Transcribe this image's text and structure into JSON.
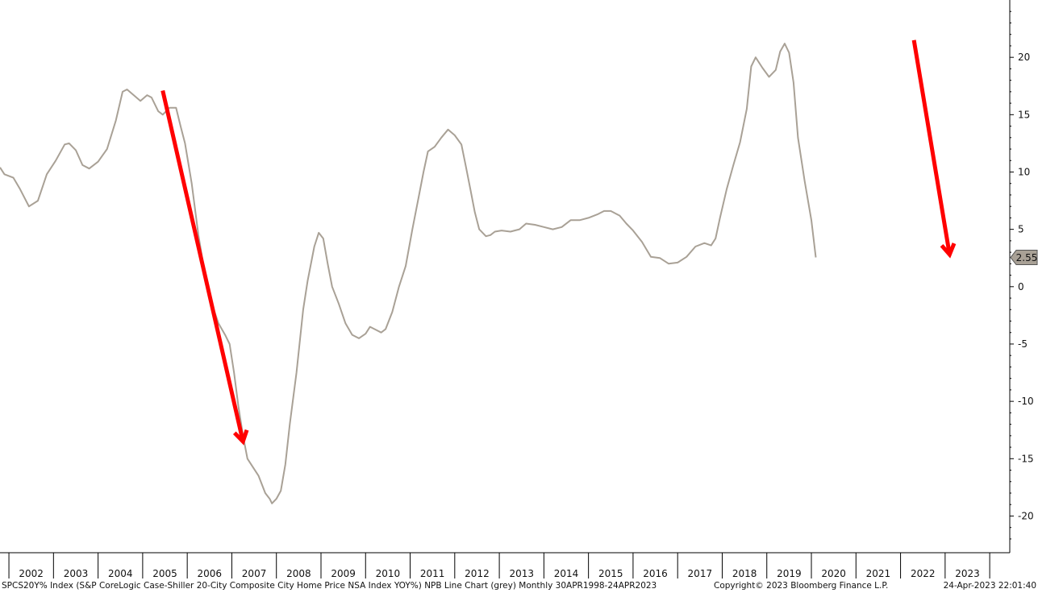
{
  "chart_data": {
    "type": "line",
    "title": "",
    "xlabel": "",
    "ylabel": "",
    "x_tick_labels": [
      "2002",
      "2003",
      "2004",
      "2005",
      "2006",
      "2007",
      "2008",
      "2009",
      "2010",
      "2011",
      "2012",
      "2013",
      "2014",
      "2015",
      "2016",
      "2017",
      "2018",
      "2019",
      "2020",
      "2021",
      "2022",
      "2023"
    ],
    "y_ticks": [
      20,
      15,
      10,
      5,
      0,
      -5,
      -10,
      -15,
      -20
    ],
    "ylim": [
      -23.2,
      25
    ],
    "xlim": [
      2001.3,
      2023.95
    ],
    "grid": false,
    "y_axis_side": "right",
    "last_value_label": "2.55",
    "series": [
      {
        "color": "#a9a196",
        "points": [
          [
            2001.3,
            10.4
          ],
          [
            2001.4,
            9.8
          ],
          [
            2001.6,
            9.5
          ],
          [
            2001.75,
            8.5
          ],
          [
            2001.95,
            7.0
          ],
          [
            2002.15,
            7.5
          ],
          [
            2002.35,
            9.8
          ],
          [
            2002.55,
            11.0
          ],
          [
            2002.75,
            12.4
          ],
          [
            2002.85,
            12.5
          ],
          [
            2003.0,
            11.9
          ],
          [
            2003.15,
            10.6
          ],
          [
            2003.3,
            10.3
          ],
          [
            2003.5,
            10.9
          ],
          [
            2003.7,
            12.0
          ],
          [
            2003.9,
            14.5
          ],
          [
            2004.05,
            17.0
          ],
          [
            2004.15,
            17.2
          ],
          [
            2004.3,
            16.7
          ],
          [
            2004.45,
            16.2
          ],
          [
            2004.6,
            16.7
          ],
          [
            2004.7,
            16.5
          ],
          [
            2004.85,
            15.3
          ],
          [
            2004.95,
            15.0
          ],
          [
            2005.1,
            15.6
          ],
          [
            2005.25,
            15.6
          ],
          [
            2005.35,
            14.0
          ],
          [
            2005.45,
            12.5
          ],
          [
            2005.6,
            9.0
          ],
          [
            2005.75,
            4.5
          ],
          [
            2005.9,
            1.0
          ],
          [
            2006.05,
            -1.5
          ],
          [
            2006.2,
            -3.2
          ],
          [
            2006.35,
            -4.2
          ],
          [
            2006.45,
            -5.0
          ],
          [
            2006.55,
            -7.5
          ],
          [
            2006.65,
            -10.5
          ],
          [
            2006.75,
            -13.0
          ],
          [
            2006.85,
            -15.0
          ],
          [
            2006.95,
            -15.6
          ],
          [
            2007.1,
            -16.5
          ],
          [
            2007.25,
            -18.0
          ],
          [
            2007.35,
            -18.5
          ],
          [
            2007.4,
            -18.9
          ],
          [
            2007.5,
            -18.5
          ],
          [
            2007.6,
            -17.8
          ],
          [
            2007.7,
            -15.5
          ],
          [
            2007.8,
            -12.0
          ],
          [
            2007.95,
            -7.5
          ],
          [
            2008.1,
            -2.0
          ],
          [
            2008.2,
            0.5
          ],
          [
            2008.35,
            3.5
          ],
          [
            2008.45,
            4.7
          ],
          [
            2008.55,
            4.2
          ],
          [
            2008.65,
            2.0
          ],
          [
            2008.75,
            0.0
          ],
          [
            2008.9,
            -1.5
          ],
          [
            2009.05,
            -3.2
          ],
          [
            2009.2,
            -4.2
          ],
          [
            2009.35,
            -4.5
          ],
          [
            2009.5,
            -4.1
          ],
          [
            2009.6,
            -3.5
          ],
          [
            2009.75,
            -3.8
          ],
          [
            2009.85,
            -4.0
          ],
          [
            2009.95,
            -3.7
          ],
          [
            2010.1,
            -2.2
          ],
          [
            2010.25,
            0.0
          ],
          [
            2010.4,
            1.8
          ],
          [
            2010.55,
            5.0
          ],
          [
            2010.7,
            8.0
          ],
          [
            2010.8,
            10.0
          ],
          [
            2010.9,
            11.8
          ],
          [
            2011.05,
            12.2
          ],
          [
            2011.2,
            13.0
          ],
          [
            2011.35,
            13.7
          ],
          [
            2011.5,
            13.2
          ],
          [
            2011.65,
            12.4
          ],
          [
            2011.75,
            10.5
          ],
          [
            2011.85,
            8.5
          ],
          [
            2011.95,
            6.5
          ],
          [
            2012.05,
            5.0
          ],
          [
            2012.2,
            4.4
          ],
          [
            2012.3,
            4.5
          ],
          [
            2012.4,
            4.8
          ],
          [
            2012.55,
            4.9
          ],
          [
            2012.75,
            4.8
          ],
          [
            2012.95,
            5.0
          ],
          [
            2013.1,
            5.5
          ],
          [
            2013.3,
            5.4
          ],
          [
            2013.5,
            5.2
          ],
          [
            2013.7,
            5.0
          ],
          [
            2013.9,
            5.2
          ],
          [
            2014.1,
            5.8
          ],
          [
            2014.3,
            5.8
          ],
          [
            2014.5,
            6.0
          ],
          [
            2014.7,
            6.3
          ],
          [
            2014.85,
            6.6
          ],
          [
            2015.0,
            6.6
          ],
          [
            2015.2,
            6.2
          ],
          [
            2015.35,
            5.5
          ],
          [
            2015.5,
            4.9
          ],
          [
            2015.7,
            3.9
          ],
          [
            2015.9,
            2.6
          ],
          [
            2016.1,
            2.5
          ],
          [
            2016.3,
            2.0
          ],
          [
            2016.5,
            2.1
          ],
          [
            2016.7,
            2.6
          ],
          [
            2016.9,
            3.5
          ],
          [
            2017.1,
            3.8
          ],
          [
            2017.25,
            3.6
          ],
          [
            2017.35,
            4.2
          ],
          [
            2017.45,
            6.0
          ],
          [
            2017.6,
            8.5
          ],
          [
            2017.75,
            10.6
          ],
          [
            2017.9,
            12.6
          ],
          [
            2018.05,
            15.5
          ],
          [
            2018.15,
            19.2
          ],
          [
            2018.25,
            20.0
          ],
          [
            2018.4,
            19.1
          ],
          [
            2018.55,
            18.3
          ],
          [
            2018.7,
            18.9
          ],
          [
            2018.8,
            20.5
          ],
          [
            2018.9,
            21.2
          ],
          [
            2019.0,
            20.4
          ],
          [
            2019.1,
            17.8
          ],
          [
            2019.2,
            13.0
          ],
          [
            2019.35,
            9.2
          ],
          [
            2019.5,
            5.8
          ],
          [
            2019.6,
            2.55
          ]
        ]
      }
    ],
    "annotations": [
      {
        "type": "arrow",
        "color": "#ff0000",
        "from": [
          2004.95,
          17.1
        ],
        "to": [
          2006.75,
          -13.5
        ]
      },
      {
        "type": "arrow",
        "color": "#ff0000",
        "from": [
          2021.8,
          21.5
        ],
        "to": [
          2022.6,
          2.8
        ]
      }
    ]
  },
  "footer": {
    "left": "SPCS20Y% Index (S&P CoreLogic Case-Shiller 20-City Composite City Home Price NSA Index YOY%) NPB Line Chart (grey)  Monthly 30APR1998-24APR2023",
    "center": "Copyright© 2023 Bloomberg Finance L.P.",
    "right": "24-Apr-2023 22:01:40"
  }
}
